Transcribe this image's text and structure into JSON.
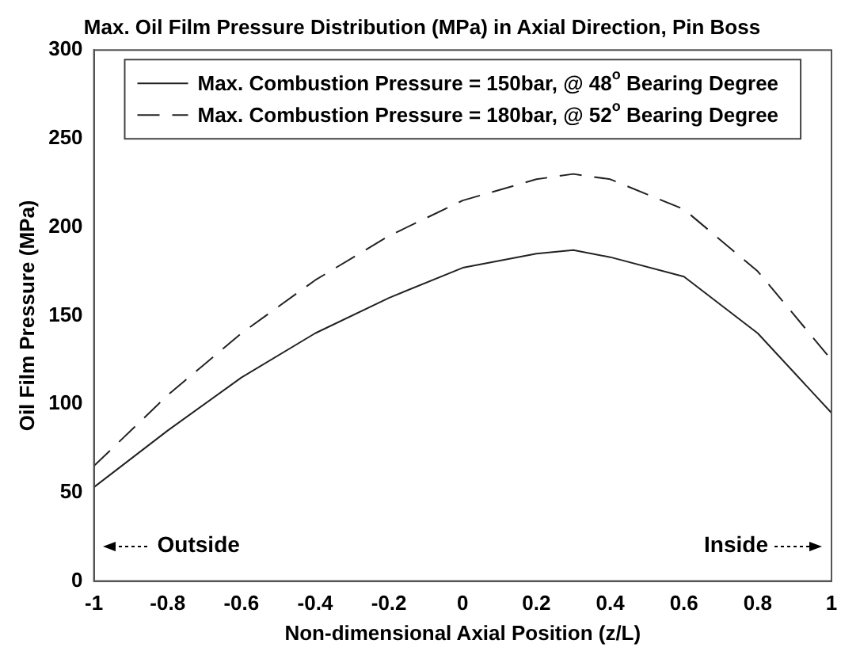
{
  "chart_data": {
    "type": "line",
    "title": "Max. Oil Film Pressure Distribution (MPa) in Axial Direction, Pin Boss",
    "xlabel": "Non-dimensional Axial Position (z/L)",
    "ylabel": "Oil Film Pressure (MPa)",
    "x": [
      -1,
      -0.8,
      -0.6,
      -0.4,
      -0.2,
      0,
      0.2,
      0.3,
      0.4,
      0.6,
      0.8,
      1
    ],
    "series": [
      {
        "name": "Max. Combustion Pressure = 150bar, @ 48$^{o}$ Bearing Degree",
        "color": "#222222",
        "line_style": "solid",
        "values": [
          53,
          85,
          115,
          140,
          160,
          177,
          185,
          187,
          183,
          172,
          140,
          95
        ]
      },
      {
        "name": "Max. Combustion Pressure = 180bar, @ 52$^{o}$ Bearing Degree",
        "color": "#222222",
        "line_style": "dashed",
        "values": [
          65,
          105,
          140,
          170,
          195,
          215,
          227,
          230,
          227,
          210,
          175,
          125
        ]
      }
    ],
    "xlim": [
      -1,
      1
    ],
    "xticks": [
      -1,
      -0.8,
      -0.6,
      -0.4,
      -0.2,
      0,
      0.2,
      0.4,
      0.6,
      0.8,
      1
    ],
    "ylim": [
      0,
      300
    ],
    "yticks": [
      0,
      50,
      100,
      150,
      200,
      250,
      300
    ],
    "grid": false,
    "legend": "top",
    "marker": "none",
    "annotations": [
      "Outside",
      "Inside"
    ]
  }
}
